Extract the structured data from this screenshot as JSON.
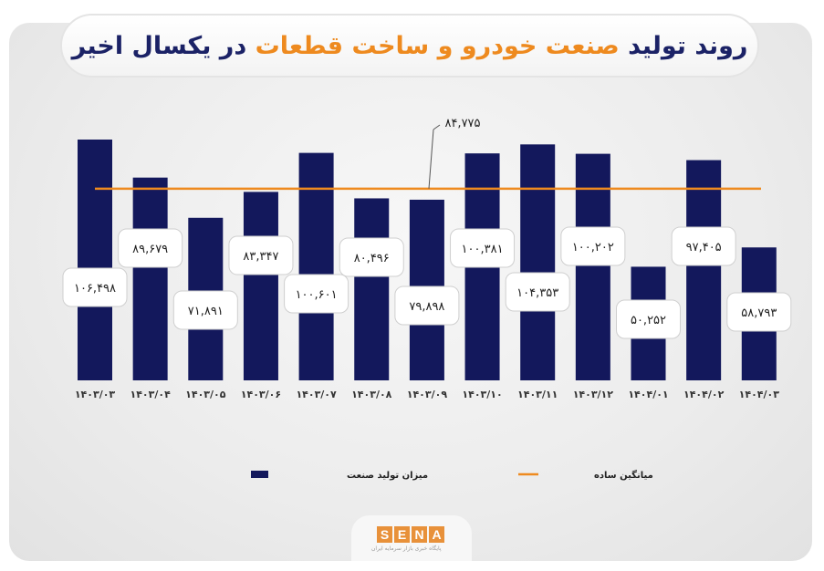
{
  "title": {
    "part1": "روند تولید",
    "highlight": "صنعت خودرو و ساخت قطعات",
    "part2": "در یکسال اخیر",
    "quote_open": "❝",
    "quote_close": "❞"
  },
  "colors": {
    "bar": "#13185c",
    "average": "#ee8a1f",
    "title": "#1b2266",
    "highlight": "#ee8a1f",
    "quote": "#1e9c8c"
  },
  "chart_data": {
    "type": "bar",
    "title": "روند تولید صنعت خودرو و ساخت قطعات در یکسال اخیر",
    "categories": [
      "۱۴۰۳/۰۳",
      "۱۴۰۳/۰۴",
      "۱۴۰۳/۰۵",
      "۱۴۰۳/۰۶",
      "۱۴۰۳/۰۷",
      "۱۴۰۳/۰۸",
      "۱۴۰۳/۰۹",
      "۱۴۰۳/۱۰",
      "۱۴۰۳/۱۱",
      "۱۴۰۳/۱۲",
      "۱۴۰۴/۰۱",
      "۱۴۰۴/۰۲",
      "۱۴۰۴/۰۳"
    ],
    "series": [
      {
        "name": "میزان تولید صنعت",
        "values": [
          106498,
          89679,
          71891,
          83347,
          100601,
          80496,
          79898,
          100381,
          104353,
          100202,
          50252,
          97405,
          58793
        ]
      }
    ],
    "value_labels": [
      "۱۰۶,۴۹۸",
      "۸۹,۶۷۹",
      "۷۱,۸۹۱",
      "۸۳,۳۴۷",
      "۱۰۰,۶۰۱",
      "۸۰,۴۹۶",
      "۷۹,۸۹۸",
      "۱۰۰,۳۸۱",
      "۱۰۴,۳۵۳",
      "۱۰۰,۲۰۲",
      "۵۰,۲۵۲",
      "۹۷,۴۰۵",
      "۵۸,۷۹۳"
    ],
    "average": {
      "name": "میانگین ساده",
      "value": 84775,
      "label": "۸۴,۷۷۵"
    },
    "ylim": [
      0,
      110000
    ],
    "grid": false,
    "legend": "bottom"
  },
  "logo": {
    "letters": [
      "S",
      "E",
      "N",
      "A"
    ],
    "subtitle": "پایگاه خبری بازار سرمایه ایران"
  }
}
